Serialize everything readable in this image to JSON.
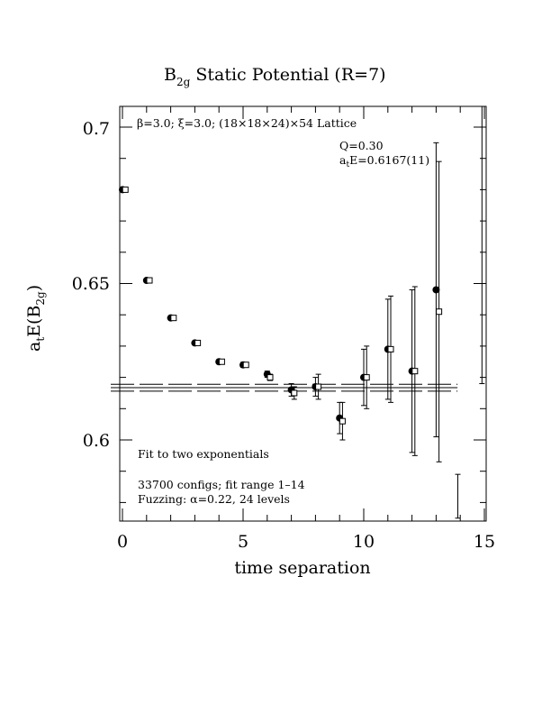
{
  "chart_data": {
    "type": "scatter",
    "title": "B",
    "title_sub": "2g",
    "title_rest": " Static Potential (R=7)",
    "xlabel": "time separation",
    "ylabel_parts": {
      "a": "a",
      "t": "t",
      "e": "E(B",
      "sub": "2g",
      "close": ")"
    },
    "xlim": [
      0,
      15
    ],
    "ylim": [
      0.575,
      0.707
    ],
    "x_ticks": [
      0,
      5,
      10,
      15
    ],
    "x_tick_labels": [
      "0",
      "5",
      "10",
      "15"
    ],
    "y_ticks": [
      0.6,
      0.65,
      0.7
    ],
    "y_tick_labels": [
      "0.6",
      "0.65",
      "0.7"
    ],
    "lattice_note": "β=3.0; ξ=3.0; (18×18×24)×54 Lattice",
    "q_label": "Q=0.30",
    "energy_label": {
      "a": "a",
      "t": "t",
      "rest": "E=0.6167(11)"
    },
    "fit_label": "Fit to two exponentials",
    "configs_label": "33700 configs; fit range 1–14",
    "fuzzing_label": "Fuzzing: α=0.22, 24 levels",
    "fit_line": {
      "value": 0.6167,
      "error": 0.0011,
      "x_range": [
        0,
        13.4
      ]
    },
    "series": [
      {
        "marker": "filled-circle",
        "x": [
          0,
          1,
          2,
          3,
          4,
          5,
          6,
          7,
          8,
          9,
          10,
          11,
          12,
          13
        ],
        "y": [
          0.68,
          0.651,
          0.639,
          0.631,
          0.625,
          0.624,
          0.621,
          0.616,
          0.617,
          0.607,
          0.62,
          0.629,
          0.622,
          0.648
        ],
        "err": [
          0.0003,
          0.0003,
          0.0004,
          0.0005,
          0.0006,
          0.0008,
          0.001,
          0.002,
          0.003,
          0.005,
          0.009,
          0.016,
          0.026,
          0.047
        ]
      },
      {
        "marker": "open-square",
        "x": [
          0.12,
          1.12,
          2.12,
          3.12,
          4.12,
          5.12,
          6.12,
          7.12,
          8.12,
          9.12,
          10.12,
          11.12,
          12.12,
          13.12
        ],
        "y": [
          0.68,
          0.651,
          0.639,
          0.631,
          0.625,
          0.624,
          0.62,
          0.615,
          0.617,
          0.606,
          0.62,
          0.629,
          0.622,
          0.641
        ],
        "err": [
          0.0003,
          0.0003,
          0.0004,
          0.0005,
          0.0006,
          0.0007,
          0.001,
          0.002,
          0.004,
          0.006,
          0.01,
          0.017,
          0.027,
          0.048
        ]
      }
    ],
    "offscale": [
      {
        "x": 14.9,
        "y_low": 0.618,
        "y_high": 0.707
      },
      {
        "x": 13.9,
        "y_low": 0.575,
        "y_high": 0.589
      }
    ]
  }
}
